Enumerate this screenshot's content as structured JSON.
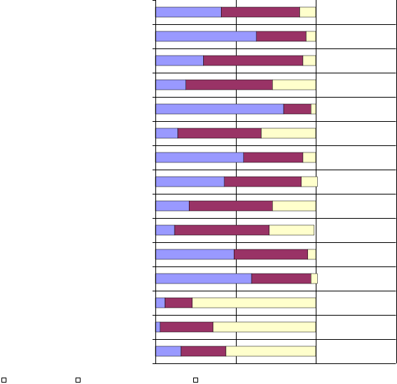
{
  "chart_data": {
    "type": "bar",
    "orientation": "horizontal",
    "stacked": true,
    "grid": true,
    "categories": [
      "",
      "",
      "",
      "",
      "",
      "",
      "",
      "",
      "",
      "",
      "",
      "",
      "",
      "",
      ""
    ],
    "series": [
      {
        "name": "",
        "color": "#9999ff",
        "values": [
          0.41,
          0.63,
          0.3,
          0.19,
          0.8,
          0.14,
          0.55,
          0.43,
          0.21,
          0.12,
          0.49,
          0.6,
          0.06,
          0.03,
          0.16
        ]
      },
      {
        "name": "",
        "color": "#993366",
        "values": [
          0.49,
          0.31,
          0.62,
          0.54,
          0.17,
          0.52,
          0.37,
          0.48,
          0.52,
          0.59,
          0.46,
          0.37,
          0.17,
          0.33,
          0.28
        ]
      },
      {
        "name": "",
        "color": "#ffffcc",
        "values": [
          0.1,
          0.06,
          0.08,
          0.27,
          0.03,
          0.34,
          0.08,
          0.1,
          0.27,
          0.28,
          0.05,
          0.04,
          0.77,
          0.64,
          0.56
        ]
      }
    ],
    "xlim": [
      0,
      1.5
    ],
    "title": "",
    "xlabel": "",
    "ylabel": "",
    "legend_position": "bottom"
  },
  "legend": {
    "items": [
      {
        "label": ""
      },
      {
        "label": ""
      },
      {
        "label": ""
      }
    ]
  }
}
